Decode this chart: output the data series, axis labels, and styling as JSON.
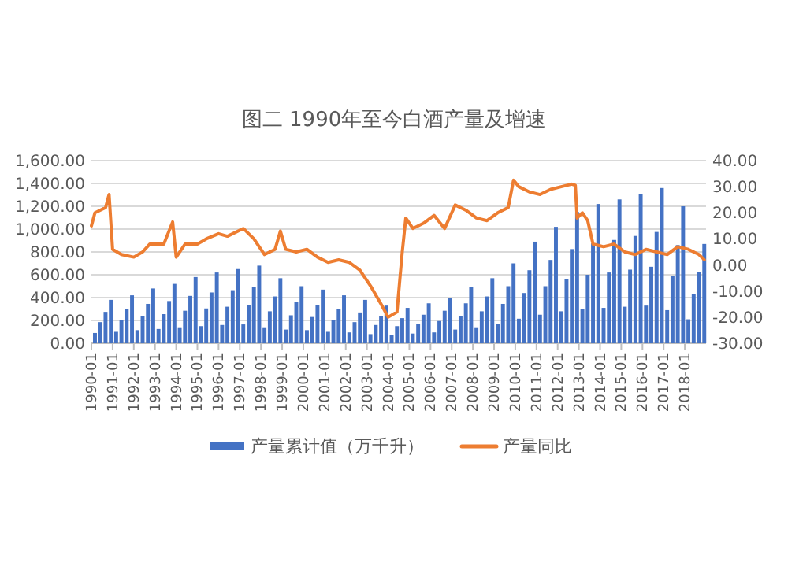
{
  "chart_data": {
    "type": "bar",
    "title": "图二 1990年至今白酒产量及增速",
    "legend": "bottom",
    "grid": "y",
    "xlim": [
      "1990-01",
      "2019-01"
    ],
    "xticks": [
      "1990-01",
      "1991-01",
      "1992-01",
      "1993-01",
      "1994-01",
      "1995-01",
      "1996-01",
      "1997-01",
      "1998-01",
      "1999-01",
      "2000-01",
      "2001-01",
      "2002-01",
      "2003-01",
      "2004-01",
      "2005-01",
      "2006-01",
      "2007-01",
      "2008-01",
      "2009-01",
      "2010-01",
      "2011-01",
      "2012-01",
      "2013-01",
      "2014-01",
      "2015-01",
      "2016-01",
      "2017-01",
      "2018-01"
    ],
    "ylim": [
      0,
      1600
    ],
    "yticks": [
      {
        "value": 0,
        "label": "0.00"
      },
      {
        "value": 200,
        "label": "200.00"
      },
      {
        "value": 400,
        "label": "400.00"
      },
      {
        "value": 600,
        "label": "600.00"
      },
      {
        "value": 800,
        "label": "800.00"
      },
      {
        "value": 1000,
        "label": "1,000.00"
      },
      {
        "value": 1200,
        "label": "1,200.00"
      },
      {
        "value": 1400,
        "label": "1,400.00"
      },
      {
        "value": 1600,
        "label": "1,600.00"
      }
    ],
    "y2lim": [
      -30,
      40
    ],
    "y2ticks": [
      {
        "value": -30,
        "label": "-30.00"
      },
      {
        "value": -20,
        "label": "-20.00"
      },
      {
        "value": -10,
        "label": "-10.00"
      },
      {
        "value": 0,
        "label": "0.00"
      },
      {
        "value": 10,
        "label": "10.00"
      },
      {
        "value": 20,
        "label": "20.00"
      },
      {
        "value": 30,
        "label": "30.00"
      },
      {
        "value": 40,
        "label": "40.00"
      }
    ],
    "series": [
      {
        "name": "产量累计值（万千升）",
        "color": "#4472c4",
        "x": [
          "1990-03",
          "1990-06",
          "1990-09",
          "1990-12",
          "1991-03",
          "1991-06",
          "1991-09",
          "1991-12",
          "1992-03",
          "1992-06",
          "1992-09",
          "1992-12",
          "1993-03",
          "1993-06",
          "1993-09",
          "1993-12",
          "1994-03",
          "1994-06",
          "1994-09",
          "1994-12",
          "1995-03",
          "1995-06",
          "1995-09",
          "1995-12",
          "1996-03",
          "1996-06",
          "1996-09",
          "1996-12",
          "1997-03",
          "1997-06",
          "1997-09",
          "1997-12",
          "1998-03",
          "1998-06",
          "1998-09",
          "1998-12",
          "1999-03",
          "1999-06",
          "1999-09",
          "1999-12",
          "2000-03",
          "2000-06",
          "2000-09",
          "2000-12",
          "2001-03",
          "2001-06",
          "2001-09",
          "2001-12",
          "2002-03",
          "2002-06",
          "2002-09",
          "2002-12",
          "2003-03",
          "2003-06",
          "2003-09",
          "2003-12",
          "2004-03",
          "2004-06",
          "2004-09",
          "2004-12",
          "2005-03",
          "2005-06",
          "2005-09",
          "2005-12",
          "2006-03",
          "2006-06",
          "2006-09",
          "2006-12",
          "2007-03",
          "2007-06",
          "2007-09",
          "2007-12",
          "2008-03",
          "2008-06",
          "2008-09",
          "2008-12",
          "2009-03",
          "2009-06",
          "2009-09",
          "2009-12",
          "2010-03",
          "2010-06",
          "2010-09",
          "2010-12",
          "2011-03",
          "2011-06",
          "2011-09",
          "2011-12",
          "2012-03",
          "2012-06",
          "2012-09",
          "2012-12",
          "2013-03",
          "2013-06",
          "2013-09",
          "2013-12",
          "2014-03",
          "2014-06",
          "2014-09",
          "2014-12",
          "2015-03",
          "2015-06",
          "2015-09",
          "2015-12",
          "2016-03",
          "2016-06",
          "2016-09",
          "2016-12",
          "2017-03",
          "2017-06",
          "2017-09",
          "2017-12",
          "2018-03",
          "2018-06",
          "2018-09",
          "2018-12"
        ],
        "values": [
          90,
          185,
          275,
          380,
          100,
          205,
          300,
          420,
          115,
          235,
          345,
          480,
          125,
          255,
          370,
          520,
          140,
          285,
          415,
          580,
          150,
          305,
          445,
          620,
          160,
          320,
          465,
          650,
          165,
          335,
          490,
          680,
          140,
          280,
          410,
          570,
          120,
          245,
          360,
          500,
          115,
          230,
          335,
          470,
          100,
          205,
          300,
          420,
          95,
          185,
          270,
          380,
          80,
          160,
          235,
          330,
          75,
          150,
          220,
          310,
          85,
          170,
          250,
          350,
          95,
          195,
          285,
          400,
          120,
          240,
          350,
          490,
          140,
          280,
          410,
          570,
          170,
          345,
          500,
          700,
          215,
          440,
          640,
          890,
          250,
          500,
          730,
          1020,
          280,
          565,
          825,
          1150,
          300,
          600,
          875,
          1220,
          310,
          620,
          905,
          1260,
          320,
          645,
          940,
          1310,
          330,
          670,
          975,
          1360,
          290,
          590,
          860,
          1200,
          210,
          430,
          625,
          870
        ]
      },
      {
        "name": "产量同比",
        "type": "line",
        "axis": "y2",
        "color": "#ed7d31",
        "x": [
          "1990-01",
          "1990-03",
          "1990-06",
          "1990-09",
          "1990-11",
          "1991-01",
          "1991-06",
          "1992-01",
          "1992-06",
          "1992-10",
          "1993-06",
          "1993-11",
          "1994-01",
          "1994-06",
          "1995-01",
          "1995-06",
          "1996-01",
          "1996-06",
          "1997-03",
          "1997-09",
          "1998-03",
          "1998-09",
          "1998-12",
          "1999-03",
          "1999-09",
          "2000-03",
          "2000-09",
          "2001-03",
          "2001-09",
          "2002-03",
          "2002-09",
          "2003-03",
          "2003-09",
          "2004-01",
          "2004-06",
          "2004-09",
          "2004-11",
          "2005-03",
          "2005-09",
          "2006-03",
          "2006-09",
          "2007-03",
          "2007-09",
          "2008-03",
          "2008-09",
          "2009-03",
          "2009-09",
          "2009-12",
          "2010-03",
          "2010-09",
          "2011-03",
          "2011-09",
          "2012-03",
          "2012-09",
          "2012-11",
          "2012-12",
          "2013-03",
          "2013-06",
          "2013-09",
          "2014-03",
          "2014-09",
          "2015-03",
          "2015-09",
          "2016-03",
          "2016-09",
          "2017-03",
          "2017-09",
          "2018-03",
          "2018-09",
          "2018-12"
        ],
        "values": [
          15,
          20,
          21,
          22,
          27,
          6,
          4,
          3,
          5,
          8,
          8,
          16.5,
          3,
          8,
          8,
          10,
          12,
          11,
          14,
          10,
          4,
          6,
          13,
          6,
          5,
          6,
          3,
          1,
          2,
          1,
          -2,
          -8,
          -15,
          -20,
          -18,
          5,
          18,
          14,
          16,
          19,
          14,
          23,
          21,
          18,
          17,
          20,
          22,
          32.5,
          30,
          28,
          27,
          29,
          30,
          31,
          30.5,
          18,
          20,
          17,
          8,
          7,
          8,
          5,
          4,
          6,
          5,
          4,
          7,
          6,
          4,
          2
        ]
      }
    ]
  }
}
